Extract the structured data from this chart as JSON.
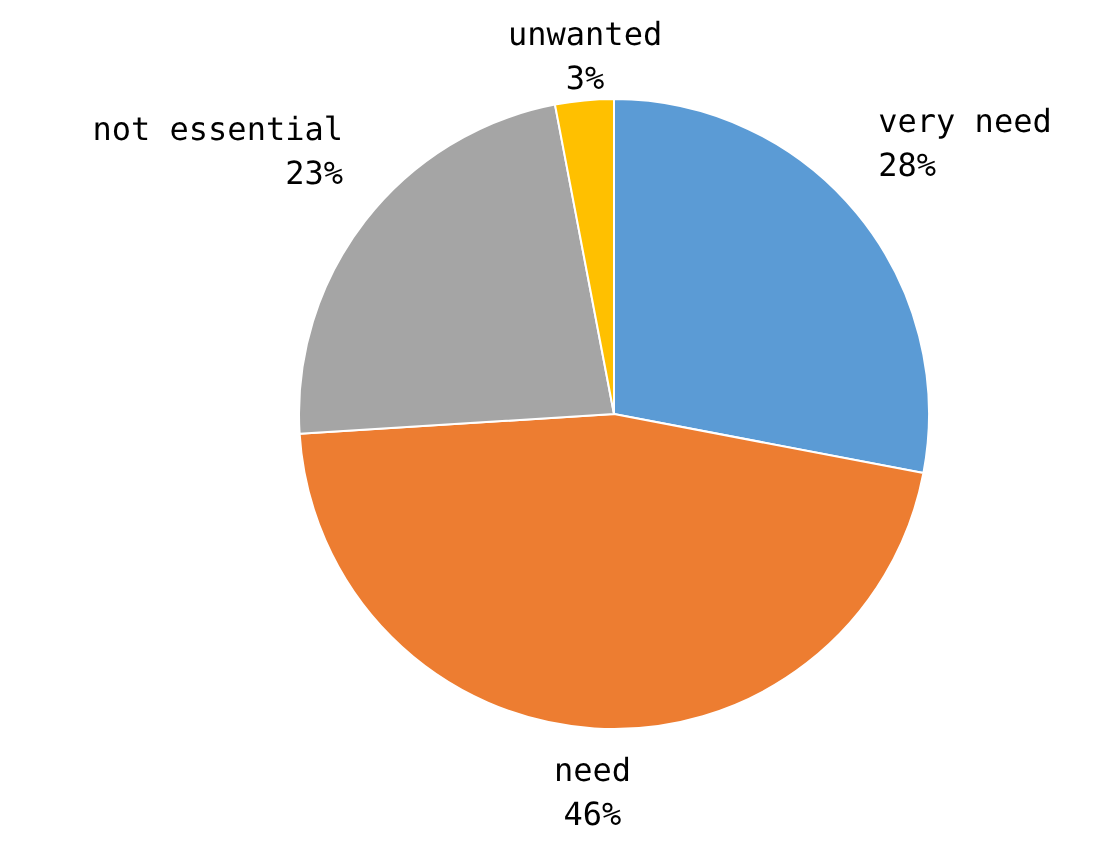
{
  "chart_data": {
    "type": "pie",
    "categories": [
      "very need",
      "need",
      "not essential",
      "unwanted"
    ],
    "values": [
      28,
      46,
      23,
      3
    ],
    "value_labels": [
      "28%",
      "46%",
      "23%",
      "3%"
    ],
    "colors": [
      "#5b9bd5",
      "#ed7d31",
      "#a5a5a5",
      "#ffc000"
    ],
    "legend": false
  }
}
